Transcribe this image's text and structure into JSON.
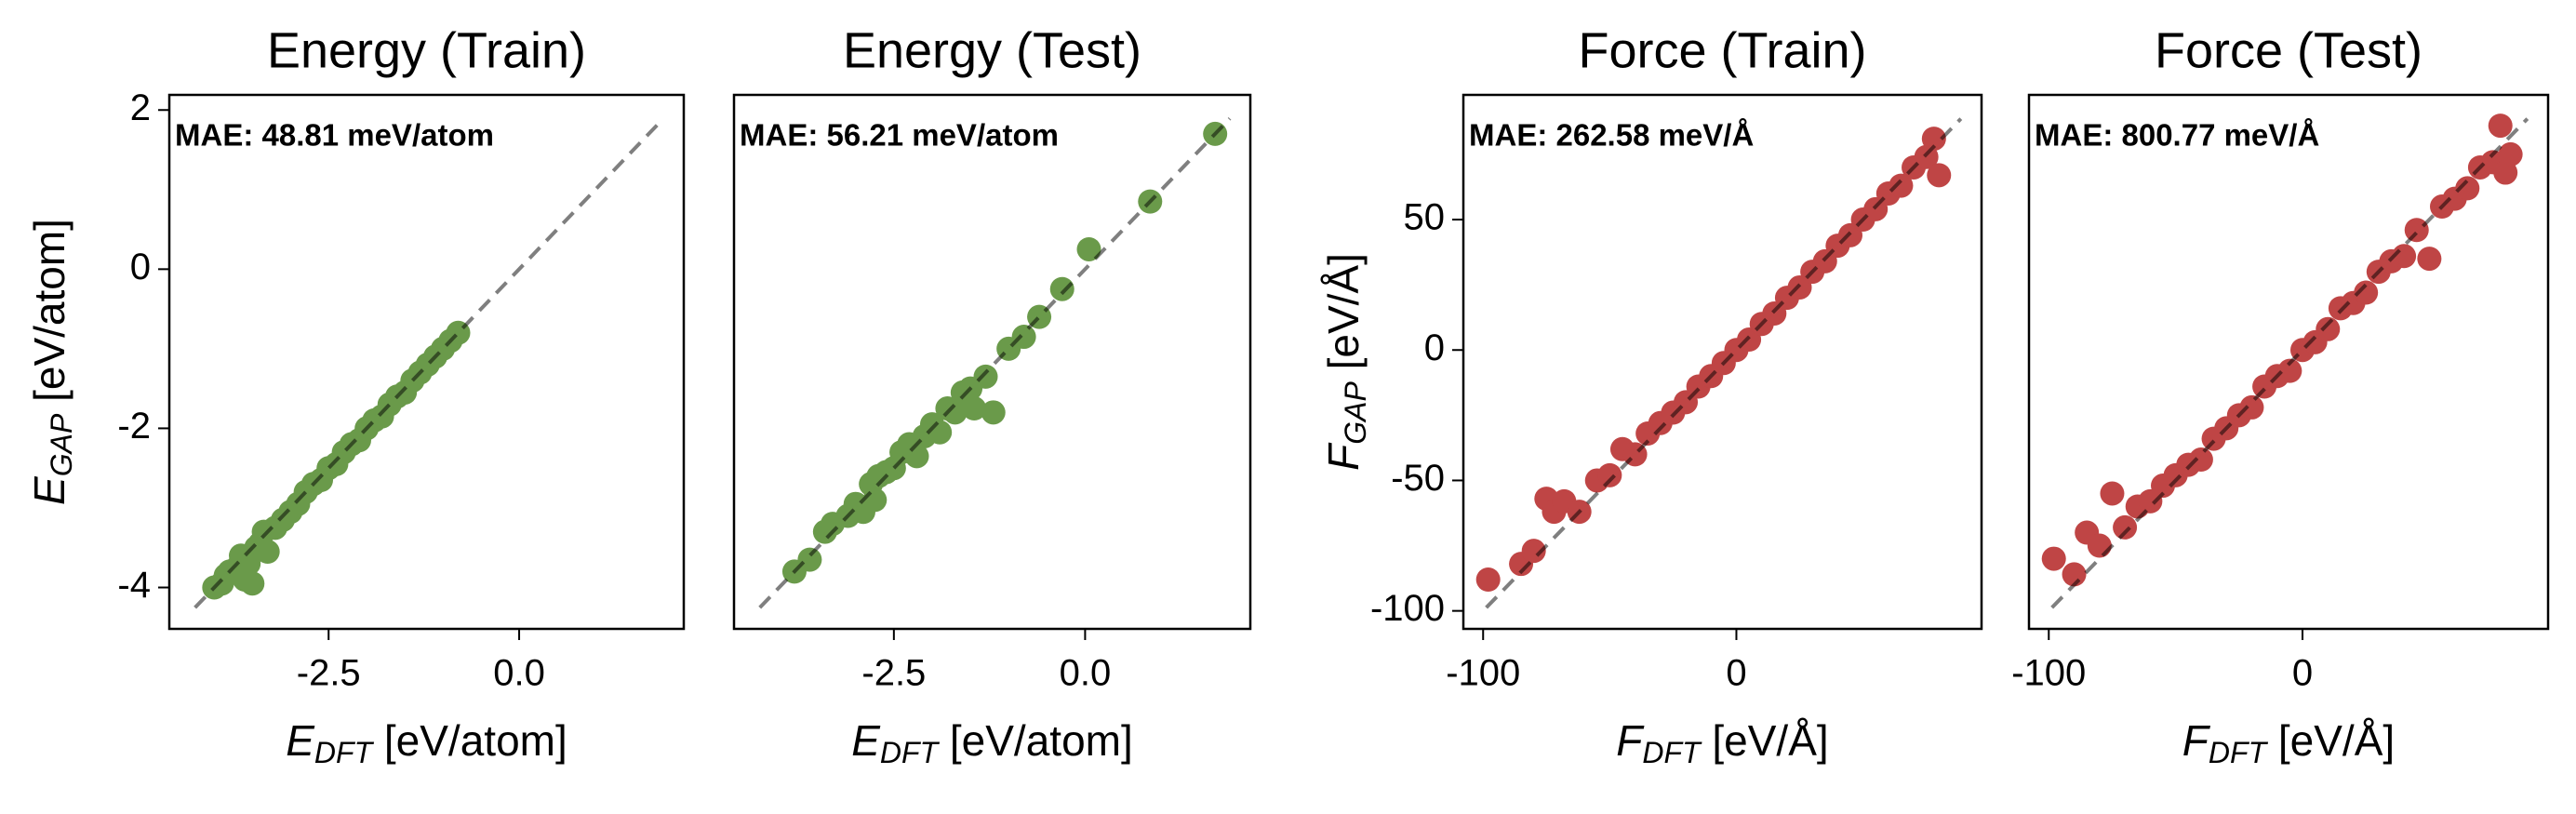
{
  "chart_data": [
    {
      "type": "scatter",
      "title": "Energy (Train)",
      "x_label": [
        "E",
        "DFT",
        " [eV/atom]"
      ],
      "y_label": [
        "E",
        "GAP",
        " [eV/atom]"
      ],
      "annotation": "MAE: 48.81 meV/atom",
      "color": "#6a9a4a",
      "xlim": [
        -4.59,
        2.16
      ],
      "ylim": [
        -4.52,
        2.19
      ],
      "xticks": [
        -2.5,
        {
          "value": 0,
          "label": "0.0"
        }
      ],
      "yticks": [
        -4,
        -2,
        0,
        2
      ],
      "x": [
        -4.0,
        -3.9,
        -3.85,
        -3.8,
        -3.7,
        -3.65,
        -3.6,
        -3.55,
        -3.5,
        -3.45,
        -3.4,
        -3.35,
        -3.3,
        -3.2,
        -3.1,
        -3.0,
        -2.9,
        -2.8,
        -2.7,
        -2.6,
        -2.5,
        -2.4,
        -2.3,
        -2.2,
        -2.1,
        -2.0,
        -1.9,
        -1.8,
        -1.7,
        -1.6,
        -1.5,
        -1.4,
        -1.3,
        -1.2,
        -1.1,
        -1.0,
        -0.9,
        -0.8
      ],
      "y": [
        -4.0,
        -3.95,
        -3.85,
        -3.8,
        -3.75,
        -3.6,
        -3.9,
        -3.7,
        -3.95,
        -3.5,
        -3.45,
        -3.3,
        -3.55,
        -3.25,
        -3.15,
        -3.05,
        -2.95,
        -2.8,
        -2.7,
        -2.65,
        -2.5,
        -2.45,
        -2.3,
        -2.2,
        -2.15,
        -2.0,
        -1.9,
        -1.85,
        -1.7,
        -1.6,
        -1.55,
        -1.4,
        -1.3,
        -1.2,
        -1.1,
        -1.0,
        -0.9,
        -0.8
      ]
    },
    {
      "type": "scatter",
      "title": "Energy (Test)",
      "x_label": [
        "E",
        "DFT",
        " [eV/atom]"
      ],
      "annotation": "MAE: 56.21 meV/atom",
      "color": "#6a9a4a",
      "xlim": [
        -4.59,
        2.16
      ],
      "ylim": [
        -4.52,
        2.19
      ],
      "xticks": [
        -2.5,
        {
          "value": 0,
          "label": "0.0"
        }
      ],
      "x": [
        -3.8,
        -3.6,
        -3.4,
        -3.3,
        -3.1,
        -3.0,
        -2.9,
        -2.8,
        -2.75,
        -2.7,
        -2.6,
        -2.5,
        -2.4,
        -2.3,
        -2.2,
        -2.1,
        -2.0,
        -1.9,
        -1.8,
        -1.7,
        -1.6,
        -1.5,
        -1.45,
        -1.3,
        -1.2,
        -1.0,
        -0.8,
        -0.6,
        -0.3,
        0.05,
        0.85,
        1.7
      ],
      "y": [
        -3.8,
        -3.65,
        -3.3,
        -3.2,
        -3.1,
        -2.95,
        -3.05,
        -2.7,
        -2.9,
        -2.6,
        -2.55,
        -2.5,
        -2.3,
        -2.2,
        -2.35,
        -2.1,
        -1.95,
        -2.05,
        -1.75,
        -1.8,
        -1.55,
        -1.5,
        -1.75,
        -1.35,
        -1.8,
        -1.0,
        -0.85,
        -0.6,
        -0.25,
        0.25,
        0.85,
        1.7
      ]
    },
    {
      "type": "scatter",
      "title": "Force (Train)",
      "x_label": [
        "F",
        "DFT",
        " [eV/Å]"
      ],
      "y_label": [
        "F",
        "GAP",
        " [eV/Å]"
      ],
      "annotation": "MAE: 262.58 meV/Å",
      "color": "#bf4545",
      "xlim": [
        -107.8,
        96.8
      ],
      "ylim": [
        -106.9,
        97.8
      ],
      "xticks": [
        -100,
        0
      ],
      "yticks": [
        -100,
        -50,
        0,
        50
      ],
      "x": [
        -98,
        -85,
        -80,
        -75,
        -72,
        -68,
        -62,
        -55,
        -50,
        -45,
        -40,
        -35,
        -30,
        -25,
        -20,
        -15,
        -10,
        -5,
        0,
        5,
        10,
        15,
        20,
        25,
        30,
        35,
        40,
        45,
        50,
        55,
        60,
        65,
        70,
        75,
        78,
        80
      ],
      "y": [
        -88,
        -82,
        -77,
        -57,
        -62,
        -58,
        -62,
        -50,
        -48,
        -38,
        -40,
        -32,
        -28,
        -24,
        -20,
        -14,
        -10,
        -5,
        0,
        4,
        10,
        14,
        20,
        24,
        30,
        34,
        40,
        44,
        50,
        54,
        60,
        63,
        70,
        74,
        81,
        67
      ]
    },
    {
      "type": "scatter",
      "title": "Force (Test)",
      "x_label": [
        "F",
        "DFT",
        " [eV/Å]"
      ],
      "annotation": "MAE: 800.77 meV/Å",
      "color": "#bf4545",
      "xlim": [
        -107.8,
        96.8
      ],
      "ylim": [
        -106.9,
        97.8
      ],
      "xticks": [
        -100,
        0
      ],
      "x": [
        -98,
        -90,
        -85,
        -80,
        -75,
        -70,
        -65,
        -60,
        -55,
        -50,
        -45,
        -40,
        -35,
        -30,
        -25,
        -20,
        -15,
        -10,
        -5,
        0,
        5,
        10,
        15,
        20,
        25,
        30,
        35,
        40,
        45,
        50,
        55,
        60,
        65,
        70,
        75,
        78,
        80,
        82
      ],
      "y": [
        -80,
        -86,
        -70,
        -75,
        -55,
        -68,
        -60,
        -58,
        -52,
        -48,
        -44,
        -42,
        -34,
        -30,
        -25,
        -22,
        -14,
        -10,
        -8,
        0,
        3,
        8,
        16,
        18,
        22,
        30,
        34,
        36,
        46,
        35,
        55,
        58,
        62,
        70,
        72,
        86,
        68,
        75
      ]
    }
  ]
}
